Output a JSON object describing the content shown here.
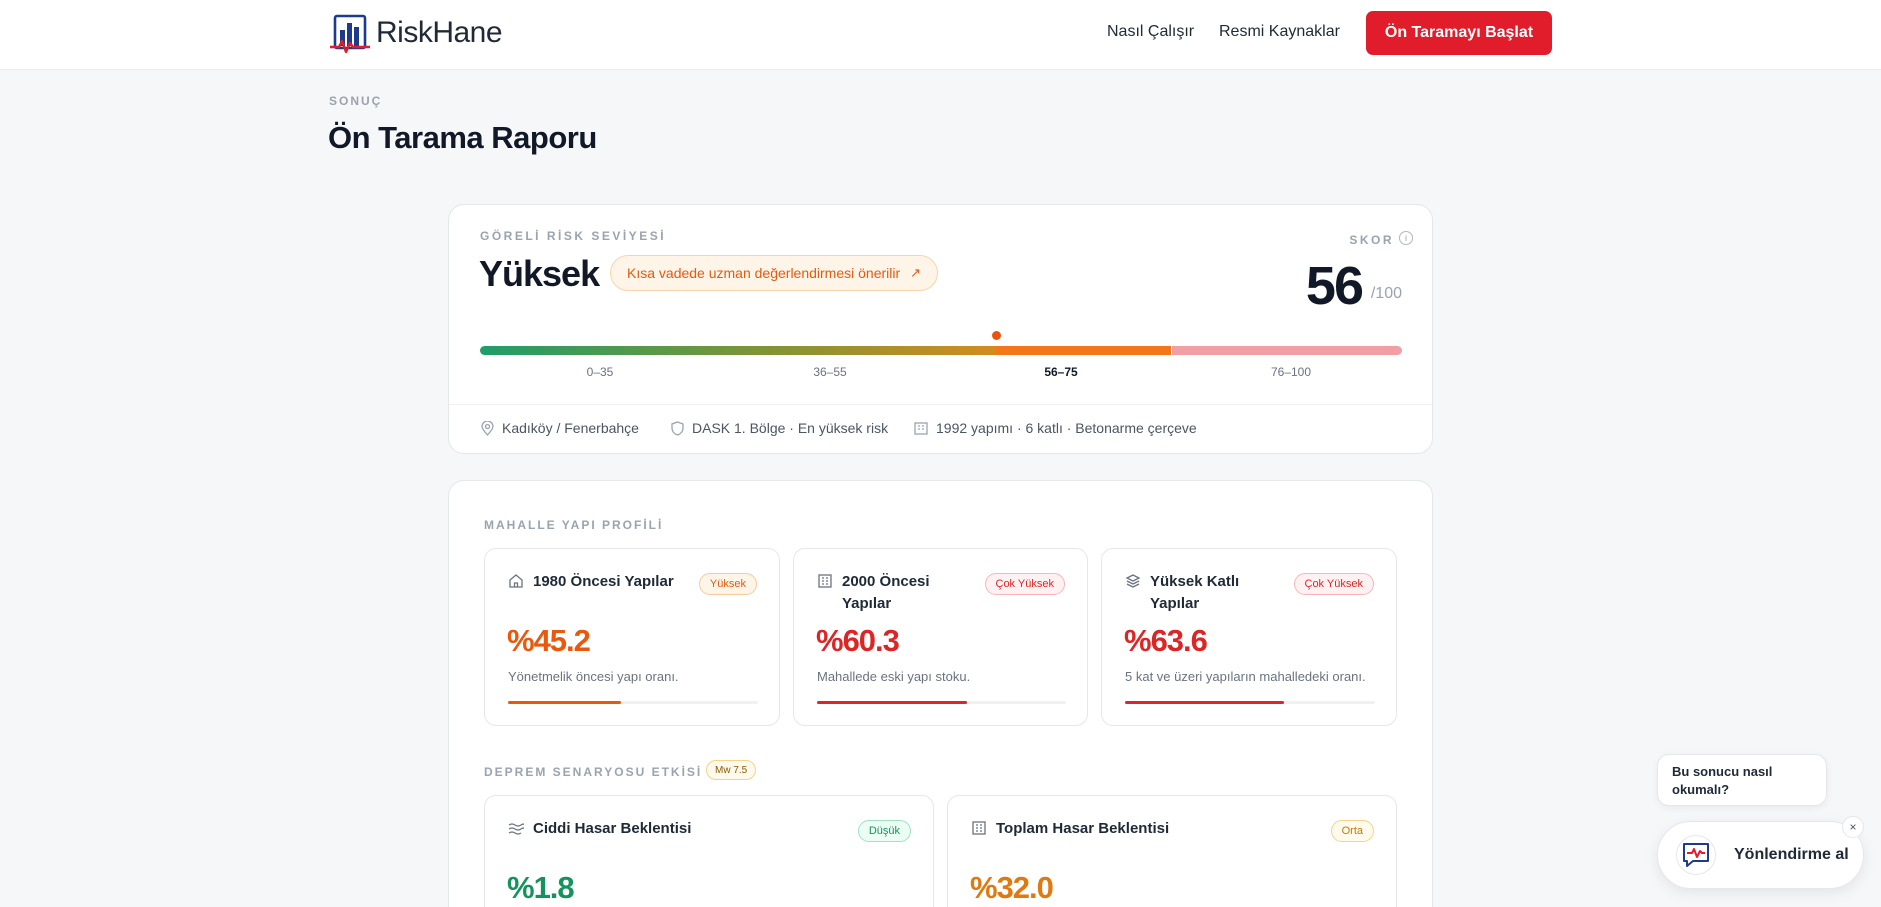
{
  "header": {
    "brand": "RiskHane",
    "nav": [
      "Nasıl Çalışır",
      "Resmi Kaynaklar"
    ],
    "cta_label": "Ön Taramayı Başlat"
  },
  "page": {
    "eyebrow": "SONUÇ",
    "title": "Ön Tarama Raporu"
  },
  "risk": {
    "label": "GÖRELİ RİSK SEVİYESİ",
    "level": "Yüksek",
    "recommendation": "Kısa vadede uzman değerlendirmesi önerilir",
    "score_label": "SKOR",
    "score": 56,
    "score_display": "56",
    "score_max": "/100",
    "ranges": [
      "0–35",
      "36–55",
      "56–75",
      "76–100"
    ],
    "active_range_index": 2,
    "meta": {
      "location": "Kadıköy / Fenerbahçe",
      "zone": "DASK 1. Bölge · En yüksek risk",
      "building": "1992 yapımı · 6 katlı · Betonarme çerçeve"
    }
  },
  "profile": {
    "section_title": "MAHALLE YAPI PROFİLİ",
    "stats": [
      {
        "icon": "home-icon",
        "title_lines": [
          "1980 Öncesi Yapılar"
        ],
        "badge": "Yüksek",
        "badge_tone": "orange",
        "value": "%45.2",
        "value_color": "#ea580c",
        "desc": "Yönetmelik öncesi yapı oranı.",
        "percent": 45.2,
        "fill_color": "#ea580c"
      },
      {
        "icon": "building-icon",
        "title_lines": [
          "2000 Öncesi",
          "Yapılar"
        ],
        "badge": "Çok Yüksek",
        "badge_tone": "red",
        "value": "%60.3",
        "value_color": "#dc2626",
        "desc": "Mahallede eski yapı stoku.",
        "percent": 60.3,
        "fill_color": "#dc2626"
      },
      {
        "icon": "layers-icon",
        "title_lines": [
          "Yüksek Katlı",
          "Yapılar"
        ],
        "badge": "Çok Yüksek",
        "badge_tone": "red",
        "value": "%63.6",
        "value_color": "#dc2626",
        "desc": "5 kat ve üzeri yapıların mahalledeki oranı.",
        "percent": 63.6,
        "fill_color": "#dc2626"
      }
    ]
  },
  "scenario": {
    "section_title": "DEPREM SENARYOSU ETKİSİ",
    "magnitude_badge": "Mw 7.5",
    "stats": [
      {
        "icon": "waves-icon",
        "title": "Ciddi Hasar Beklentisi",
        "badge": "Düşük",
        "badge_tone": "green",
        "value": "%1.8",
        "value_color": "#15935f"
      },
      {
        "icon": "building-icon",
        "title": "Toplam Hasar Beklentisi",
        "badge": "Orta",
        "badge_tone": "amber",
        "value": "%32.0",
        "value_color": "#e07a10"
      }
    ]
  },
  "chat": {
    "bubble_lines": [
      "Bu sonucu nasıl",
      "okumalı?"
    ],
    "button_label": "Yönlendirme al",
    "close": "×"
  },
  "colors": {
    "accent_red": "#e11d2b",
    "orange": "#ea580c",
    "red": "#dc2626",
    "green": "#15935f",
    "amber": "#e07a10"
  }
}
